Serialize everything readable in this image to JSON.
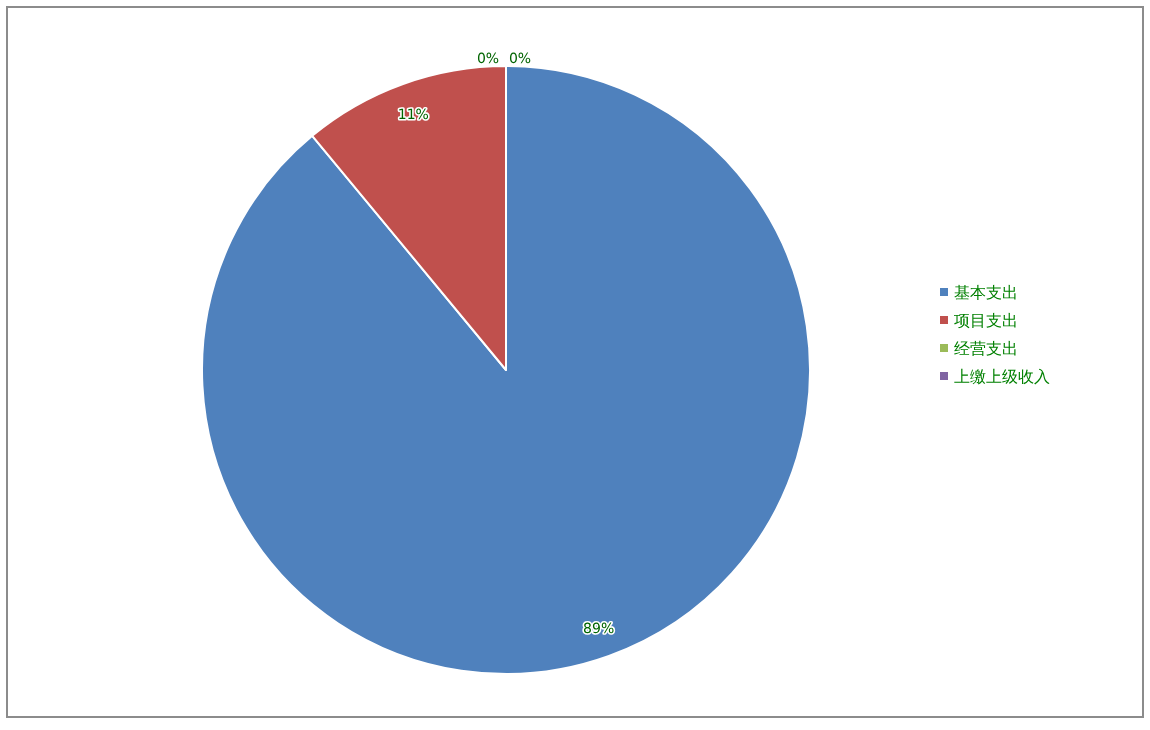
{
  "chart_data": {
    "type": "pie",
    "categories": [
      "基本支出",
      "项目支出",
      "经营支出",
      "上缴上级收入"
    ],
    "values": [
      89,
      11,
      0,
      0
    ],
    "colors": [
      "#4f81bd",
      "#c0504d",
      "#9bbb59",
      "#8064a2"
    ],
    "value_labels": [
      "89%",
      "11%",
      "0%",
      "0%"
    ],
    "legend": "right"
  }
}
